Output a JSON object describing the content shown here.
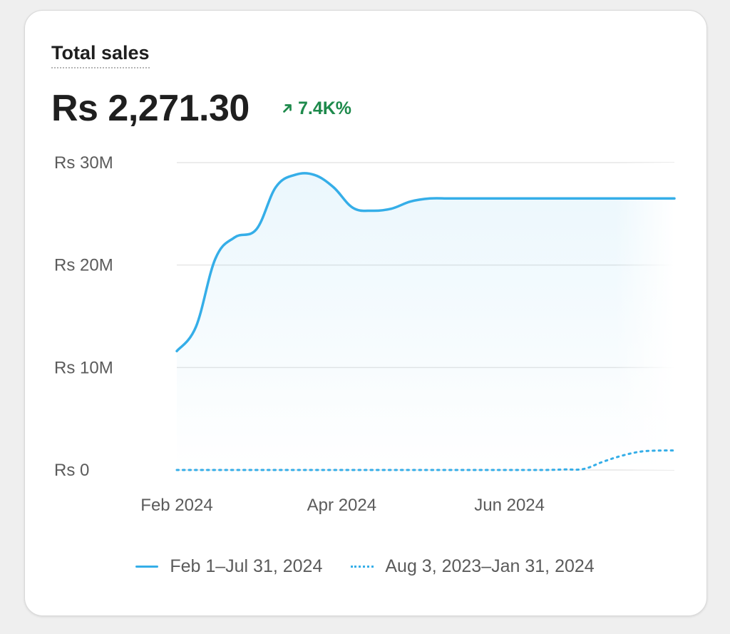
{
  "header": {
    "title": "Total sales",
    "value": "Rs 2,271.30",
    "change": "7.4K%",
    "change_color": "#1e8a4c",
    "change_icon": "arrow-up-right-icon"
  },
  "colors": {
    "series_line": "#35aee8",
    "grid": "#e6e6e6"
  },
  "chart_data": {
    "type": "line",
    "title": "Total sales",
    "xlabel": "",
    "ylabel": "",
    "x_ticks": [
      "Feb 2024",
      "Apr 2024",
      "Jun 2024"
    ],
    "y_ticks": [
      "Rs 0",
      "Rs 10M",
      "Rs 20M",
      "Rs 30M"
    ],
    "ylim": [
      0,
      30000000
    ],
    "grid": true,
    "legend_position": "bottom",
    "series": [
      {
        "name": "Feb 1–Jul 31, 2024",
        "style": "solid",
        "x": [
          "2024-02-01",
          "2024-02-08",
          "2024-02-15",
          "2024-02-22",
          "2024-03-01",
          "2024-03-08",
          "2024-03-15",
          "2024-03-22",
          "2024-03-29",
          "2024-04-05",
          "2024-04-12",
          "2024-04-19",
          "2024-04-26",
          "2024-05-03",
          "2024-05-10",
          "2024-05-17",
          "2024-05-24",
          "2024-05-31",
          "2024-06-07",
          "2024-06-14",
          "2024-06-21",
          "2024-06-28",
          "2024-07-05",
          "2024-07-12",
          "2024-07-19",
          "2024-07-26",
          "2024-07-31"
        ],
        "values": [
          11600000,
          14000000,
          20600000,
          22700000,
          23500000,
          27600000,
          28800000,
          28800000,
          27600000,
          25600000,
          25300000,
          25500000,
          26200000,
          26500000,
          26500000,
          26500000,
          26500000,
          26500000,
          26500000,
          26500000,
          26500000,
          26500000,
          26500000,
          26500000,
          26500000,
          26500000,
          26500000
        ]
      },
      {
        "name": "Aug 3, 2023–Jan 31, 2024",
        "style": "dotted",
        "x": [
          "2024-02-01",
          "2024-02-08",
          "2024-02-15",
          "2024-02-22",
          "2024-03-01",
          "2024-03-08",
          "2024-03-15",
          "2024-03-22",
          "2024-03-29",
          "2024-04-05",
          "2024-04-12",
          "2024-04-19",
          "2024-04-26",
          "2024-05-03",
          "2024-05-10",
          "2024-05-17",
          "2024-05-24",
          "2024-05-31",
          "2024-06-07",
          "2024-06-14",
          "2024-06-21",
          "2024-06-28",
          "2024-07-05",
          "2024-07-12",
          "2024-07-19",
          "2024-07-26",
          "2024-07-31"
        ],
        "values": [
          0,
          0,
          0,
          0,
          0,
          0,
          0,
          0,
          0,
          0,
          0,
          0,
          0,
          0,
          0,
          0,
          0,
          0,
          0,
          0,
          50000,
          100000,
          800000,
          1400000,
          1800000,
          1900000,
          1900000
        ]
      }
    ]
  }
}
